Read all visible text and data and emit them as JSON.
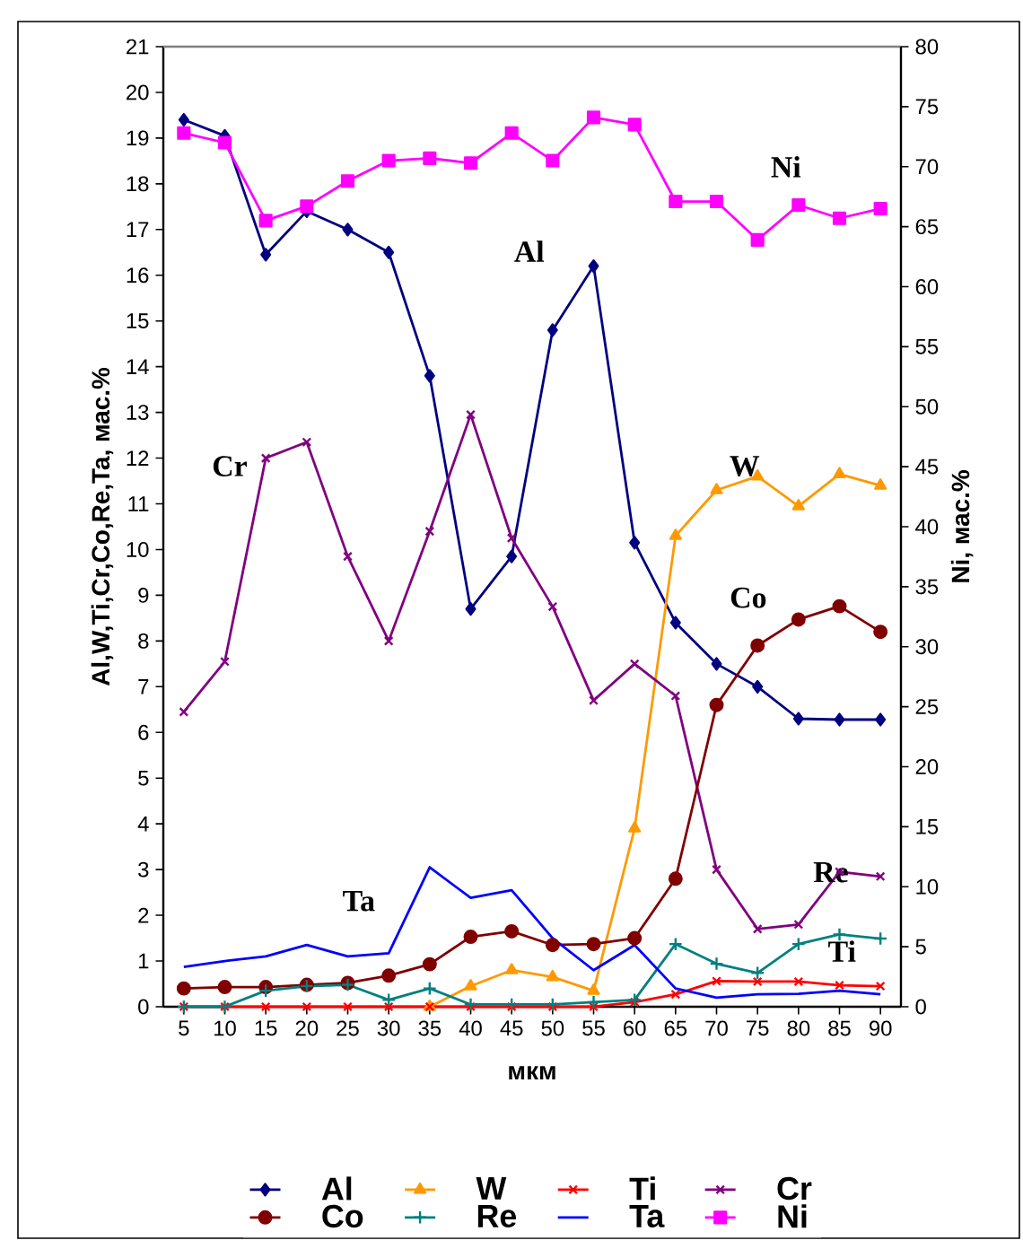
{
  "chart_data": {
    "type": "line",
    "xlabel": "мкм",
    "ylabel": "Al,W,Ti,Cr,Co,Re,Ta, мас.%",
    "y2label": "Ni, мас.%",
    "categories": [
      "5",
      "10",
      "15",
      "20",
      "25",
      "30",
      "35",
      "40",
      "45",
      "50",
      "55",
      "60",
      "65",
      "70",
      "75",
      "80",
      "85",
      "90"
    ],
    "ylim": [
      0,
      21
    ],
    "yticks": [
      0,
      1,
      2,
      3,
      4,
      5,
      6,
      7,
      8,
      9,
      10,
      11,
      12,
      13,
      14,
      15,
      16,
      17,
      18,
      19,
      20,
      21
    ],
    "y2lim": [
      0,
      80
    ],
    "y2ticks": [
      0,
      5,
      10,
      15,
      20,
      25,
      30,
      35,
      40,
      45,
      50,
      55,
      60,
      65,
      70,
      75,
      80
    ],
    "legend": "bottom",
    "grid": false,
    "series": [
      {
        "name": "Al",
        "color": "#000080",
        "marker": "diamond",
        "values": [
          19.4,
          19.05,
          16.45,
          17.4,
          17.0,
          16.5,
          13.8,
          8.7,
          9.85,
          14.8,
          16.2,
          10.15,
          8.4,
          7.5,
          7.0,
          6.3,
          6.28,
          6.28
        ]
      },
      {
        "name": "W",
        "color": "#ff9900",
        "marker": "triangle",
        "values": [
          null,
          null,
          null,
          null,
          null,
          null,
          0.0,
          0.45,
          0.8,
          0.65,
          0.35,
          3.9,
          10.3,
          11.3,
          11.6,
          10.95,
          11.65,
          11.4
        ]
      },
      {
        "name": "Ti",
        "color": "#ff0000",
        "marker": "cross",
        "values": [
          0.0,
          0.0,
          0.0,
          0.0,
          0.0,
          0.0,
          0.0,
          0.0,
          0.0,
          0.0,
          0.0,
          0.1,
          0.27,
          0.56,
          0.55,
          0.55,
          0.47,
          0.45
        ]
      },
      {
        "name": "Cr",
        "color": "#800080",
        "marker": "cross",
        "values": [
          6.45,
          7.55,
          12.0,
          12.35,
          9.85,
          8.0,
          10.4,
          12.95,
          10.25,
          8.75,
          6.7,
          7.5,
          6.8,
          3.0,
          1.7,
          1.8,
          2.95,
          2.85
        ]
      },
      {
        "name": "Co",
        "color": "#800000",
        "marker": "circle",
        "values": [
          0.4,
          0.43,
          0.43,
          0.48,
          0.52,
          0.68,
          0.93,
          1.53,
          1.65,
          1.35,
          1.37,
          1.5,
          2.8,
          6.6,
          7.9,
          8.47,
          8.76,
          8.2
        ]
      },
      {
        "name": "Re",
        "color": "#008080",
        "marker": "plus",
        "values": [
          0.0,
          0.0,
          0.35,
          0.45,
          0.48,
          0.15,
          0.4,
          0.05,
          0.05,
          0.05,
          0.1,
          0.15,
          1.37,
          0.94,
          0.74,
          1.37,
          1.58,
          1.49
        ]
      },
      {
        "name": "Ta",
        "color": "#0000ff",
        "marker": "none",
        "values": [
          0.87,
          1.0,
          1.1,
          1.35,
          1.1,
          1.17,
          3.05,
          2.38,
          2.55,
          1.5,
          0.8,
          1.35,
          0.4,
          0.2,
          0.27,
          0.28,
          0.35,
          0.27
        ]
      },
      {
        "name": "Ni",
        "color": "#ff00ff",
        "marker": "square",
        "axis": "y2",
        "values": [
          72.8,
          72.0,
          65.5,
          66.7,
          68.8,
          70.5,
          70.7,
          70.3,
          72.8,
          70.5,
          74.1,
          73.5,
          67.1,
          67.1,
          63.9,
          66.8,
          65.7,
          66.5
        ]
      }
    ],
    "annotations": [
      "Al",
      "Ni",
      "Cr",
      "W",
      "Co",
      "Ta",
      "Re",
      "Ti"
    ]
  }
}
